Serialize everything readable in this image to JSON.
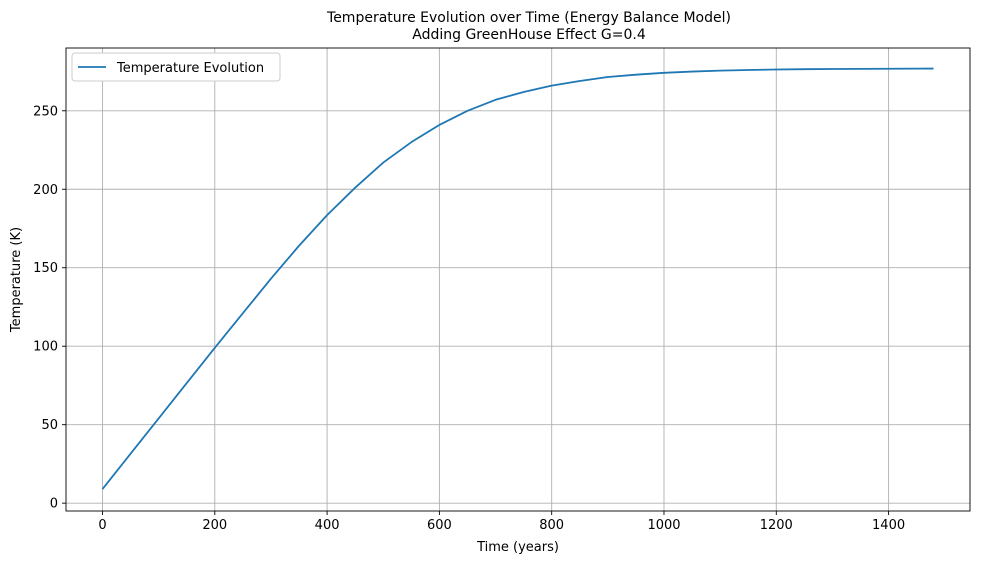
{
  "chart_data": {
    "type": "line",
    "title": "Temperature Evolution over Time (Energy Balance Model)",
    "subtitle": "Adding GreenHouse Effect G=0.4",
    "xlabel": "Time (years)",
    "ylabel": "Temperature (K)",
    "xlim": [
      -65,
      1545
    ],
    "ylim": [
      -5,
      290
    ],
    "xticks": [
      0,
      200,
      400,
      600,
      800,
      1000,
      1200,
      1400
    ],
    "yticks": [
      0,
      50,
      100,
      150,
      200,
      250
    ],
    "grid": true,
    "legend_position": "top-left",
    "series": [
      {
        "name": "Temperature Evolution",
        "color": "#1f77b4",
        "x": [
          0,
          50,
          100,
          150,
          200,
          250,
          300,
          350,
          400,
          450,
          500,
          550,
          600,
          650,
          700,
          750,
          800,
          850,
          900,
          950,
          1000,
          1050,
          1100,
          1150,
          1200,
          1250,
          1300,
          1350,
          1400,
          1450,
          1480
        ],
        "y": [
          9,
          31.5,
          54,
          76.5,
          99,
          121,
          143,
          164,
          183.5,
          201,
          217,
          230,
          241,
          250,
          257,
          262,
          266,
          269,
          271.5,
          273,
          274.2,
          275,
          275.6,
          276,
          276.3,
          276.5,
          276.6,
          276.7,
          276.8,
          276.85,
          276.9
        ]
      }
    ]
  }
}
